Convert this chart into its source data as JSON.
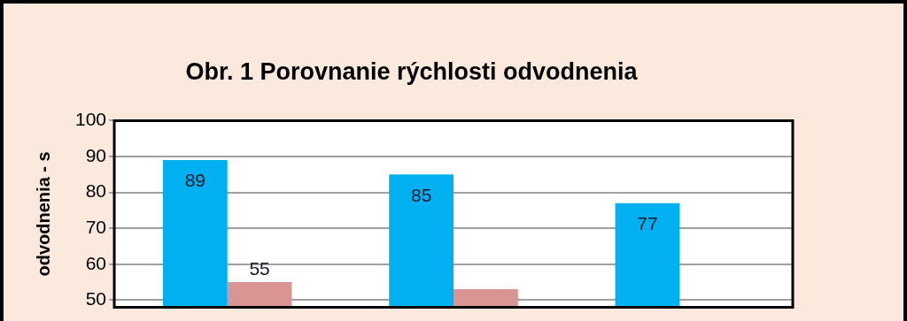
{
  "chart_data": {
    "type": "bar",
    "title": "Obr. 1 Porovnanie rýchlosti odvodnenia",
    "ylabel": "odvodnenia - s",
    "categories": [
      null,
      null,
      null
    ],
    "series": [
      {
        "color": "#00b0f0",
        "values": [
          89,
          85,
          77
        ],
        "value_labels": [
          "89",
          "85",
          "77"
        ]
      },
      {
        "color": "#d99594",
        "values": [
          55,
          53,
          null
        ],
        "value_labels": [
          "55",
          null,
          null
        ]
      }
    ],
    "ylim": [
      48,
      100
    ],
    "yticks": [
      50,
      60,
      70,
      80,
      90,
      100
    ],
    "grid": "y",
    "legend": false
  }
}
